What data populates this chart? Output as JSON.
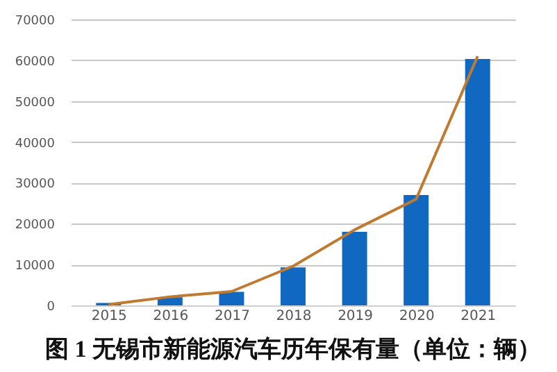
{
  "chart_data": {
    "type": "bar",
    "title": "图 1  无锡市新能源汽车历年保有量（单位：辆）",
    "categories": [
      "2015",
      "2016",
      "2017",
      "2018",
      "2019",
      "2020",
      "2021"
    ],
    "series": [
      {
        "color": "#1168c0",
        "values": [
          600,
          2000,
          3300,
          9300,
          18000,
          27000,
          60300
        ]
      },
      {
        "type": "line",
        "color": "#c07a30",
        "values": [
          200,
          2100,
          3400,
          9600,
          18500,
          26000,
          61000
        ]
      }
    ],
    "ylim": [
      0,
      70000
    ],
    "yticks": [
      0,
      10000,
      20000,
      30000,
      40000,
      50000,
      60000,
      70000
    ],
    "grid": "y"
  }
}
